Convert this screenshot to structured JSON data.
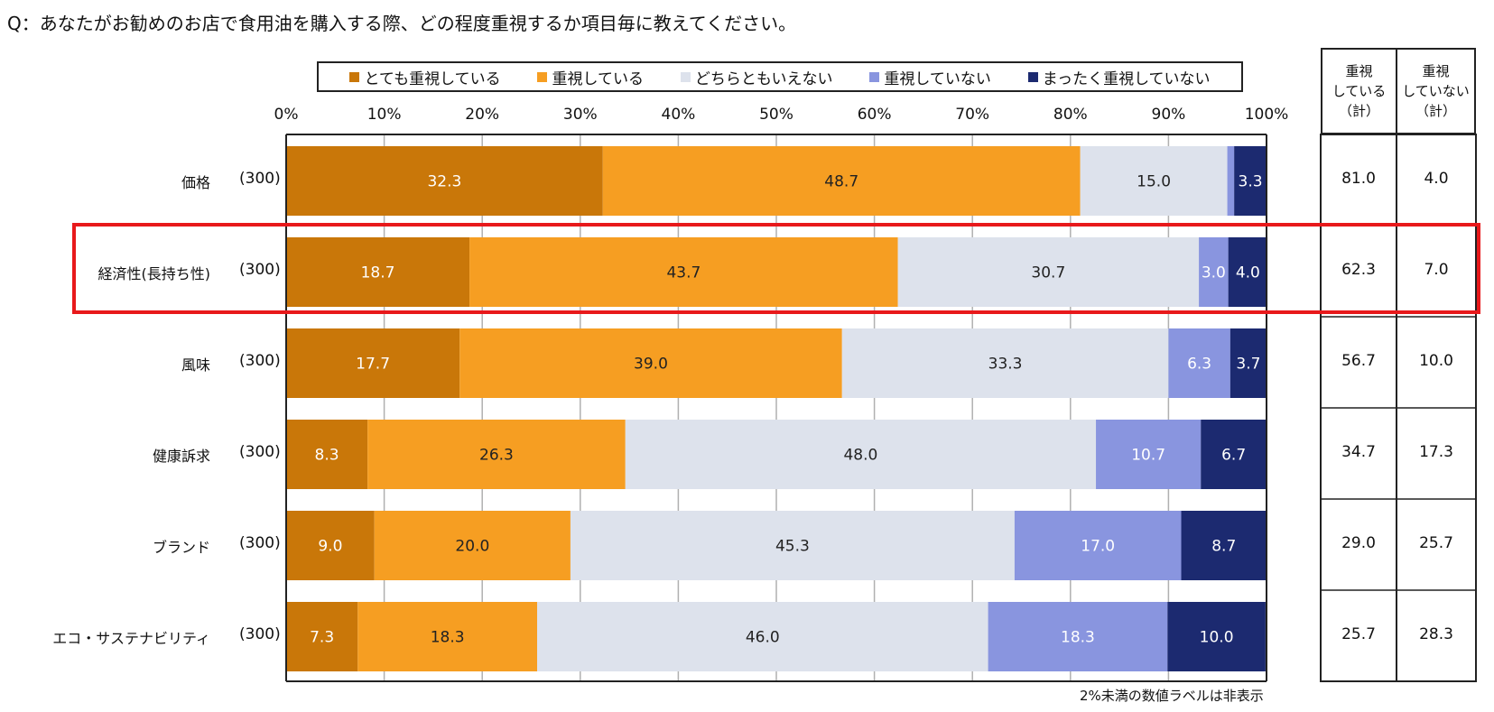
{
  "question": "Q：あなたがお勧めのお店で食用油を購入する際、どの程度重視するか項目毎に教えてください。",
  "footnote": "2%未満の数値ラベルは非表示",
  "colors": {
    "very_important": "#c97709",
    "important": "#f69e22",
    "neutral": "#dde2ec",
    "not_important": "#8995df",
    "not_at_all": "#1c2a70",
    "highlight": "#e8191b"
  },
  "sidebox": {
    "col1_header": [
      "重視",
      "している",
      "（計）"
    ],
    "col2_header": [
      "重視",
      "していない",
      "（計）"
    ]
  },
  "chart_data": {
    "type": "bar",
    "orientation": "horizontal-stacked-100",
    "title": "",
    "categories": [
      "価格",
      "経済性(長持ち性)",
      "風味",
      "健康訴求",
      "ブランド",
      "エコ・サステナビリティ"
    ],
    "n_labels": [
      "(300)",
      "(300)",
      "(300)",
      "(300)",
      "(300)",
      "(300)"
    ],
    "series": [
      {
        "name": "とても重視している",
        "values": [
          32.3,
          18.7,
          17.7,
          8.3,
          9.0,
          7.3
        ]
      },
      {
        "name": "重視している",
        "values": [
          48.7,
          43.7,
          39.0,
          26.3,
          20.0,
          18.3
        ]
      },
      {
        "name": "どちらともいえない",
        "values": [
          15.0,
          30.7,
          33.3,
          48.0,
          45.3,
          46.0
        ]
      },
      {
        "name": "重視していない",
        "values": [
          0.7,
          3.0,
          6.3,
          10.7,
          17.0,
          18.3
        ]
      },
      {
        "name": "まったく重視していない",
        "values": [
          3.3,
          4.0,
          3.7,
          6.7,
          8.7,
          10.0
        ]
      }
    ],
    "label_threshold": 2,
    "xlim": [
      0,
      100
    ],
    "xticks": [
      "0%",
      "10%",
      "20%",
      "30%",
      "40%",
      "50%",
      "60%",
      "70%",
      "80%",
      "90%",
      "100%"
    ],
    "legend_position": "top",
    "important_total": [
      "81.0",
      "62.3",
      "56.7",
      "34.7",
      "29.0",
      "25.7"
    ],
    "not_important_total": [
      "4.0",
      "7.0",
      "10.0",
      "17.3",
      "25.7",
      "28.3"
    ],
    "highlighted_category": "経済性(長持ち性)"
  }
}
